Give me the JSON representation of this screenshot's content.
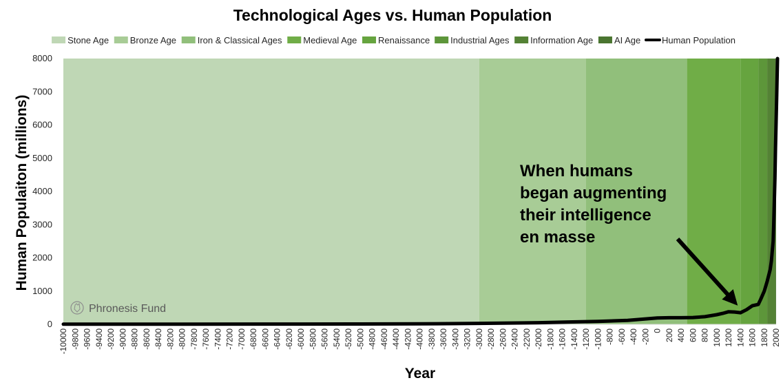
{
  "chart_data": {
    "type": "area",
    "title": "Technological Ages vs. Human Population",
    "xlabel": "Year",
    "ylabel": "Human Populaiton (millions)",
    "ylim": [
      0,
      8000
    ],
    "yticks": [
      0,
      1000,
      2000,
      3000,
      4000,
      5000,
      6000,
      7000,
      8000
    ],
    "xticks": [
      "-10000",
      "-9800",
      "-9600",
      "-9400",
      "-9200",
      "-9000",
      "-8800",
      "-8600",
      "-8400",
      "-8200",
      "-8000",
      "-7800",
      "-7600",
      "-7400",
      "-7200",
      "-7000",
      "-6800",
      "-6600",
      "-6400",
      "-6200",
      "-6000",
      "-5800",
      "-5600",
      "-5400",
      "-5200",
      "-5000",
      "-4800",
      "-4600",
      "-4400",
      "-4200",
      "-4000",
      "-3800",
      "-3600",
      "-3400",
      "-3200",
      "-3000",
      "-2800",
      "-2600",
      "-2400",
      "-2200",
      "-2000",
      "-1800",
      "-1600",
      "-1400",
      "-1200",
      "-1000",
      "-800",
      "-600",
      "-400",
      "-200",
      "0",
      "200",
      "400",
      "600",
      "800",
      "1000",
      "1200",
      "1400",
      "1600",
      "1800",
      "2000"
    ],
    "legend_position": "top",
    "ages": [
      {
        "name": "Stone Age",
        "start": -10000,
        "end": -3000,
        "color": "#bfd7b5"
      },
      {
        "name": "Bronze Age",
        "start": -3000,
        "end": -1200,
        "color": "#a8cc96"
      },
      {
        "name": "Iron & Classical Ages",
        "start": -1200,
        "end": 500,
        "color": "#91bf7b"
      },
      {
        "name": "Medieval Age",
        "start": 500,
        "end": 1400,
        "color": "#70ad47"
      },
      {
        "name": "Renaissance",
        "start": 1400,
        "end": 1700,
        "color": "#66a43f"
      },
      {
        "name": "Industrial Ages",
        "start": 1700,
        "end": 1850,
        "color": "#5d963a"
      },
      {
        "name": "Information Age",
        "start": 1850,
        "end": 1990,
        "color": "#548235"
      },
      {
        "name": "AI Age",
        "start": 1990,
        "end": 2023,
        "color": "#4a7530"
      }
    ],
    "series": [
      {
        "name": "Human Population",
        "color": "#000000",
        "points": [
          [
            -10000,
            4
          ],
          [
            -8000,
            5
          ],
          [
            -6000,
            8
          ],
          [
            -5000,
            10
          ],
          [
            -4000,
            15
          ],
          [
            -3000,
            28
          ],
          [
            -2000,
            50
          ],
          [
            -1500,
            70
          ],
          [
            -1000,
            90
          ],
          [
            -500,
            120
          ],
          [
            0,
            190
          ],
          [
            200,
            200
          ],
          [
            400,
            200
          ],
          [
            600,
            205
          ],
          [
            800,
            230
          ],
          [
            1000,
            290
          ],
          [
            1100,
            330
          ],
          [
            1200,
            380
          ],
          [
            1300,
            370
          ],
          [
            1400,
            350
          ],
          [
            1500,
            440
          ],
          [
            1600,
            560
          ],
          [
            1700,
            600
          ],
          [
            1750,
            790
          ],
          [
            1800,
            1000
          ],
          [
            1850,
            1300
          ],
          [
            1900,
            1650
          ],
          [
            1920,
            1900
          ],
          [
            1950,
            2500
          ],
          [
            1960,
            3000
          ],
          [
            1970,
            3700
          ],
          [
            1980,
            4400
          ],
          [
            1990,
            5300
          ],
          [
            2000,
            6100
          ],
          [
            2010,
            6900
          ],
          [
            2023,
            8000
          ]
        ]
      }
    ],
    "annotations": [
      {
        "text_lines": [
          "When humans",
          "began augmenting",
          "their intelligence",
          "en masse"
        ],
        "arrow_to_year": 1400,
        "arrow_to_value": 400
      }
    ]
  },
  "watermark": {
    "text": "Phronesis Fund",
    "icon": "owl-icon"
  }
}
